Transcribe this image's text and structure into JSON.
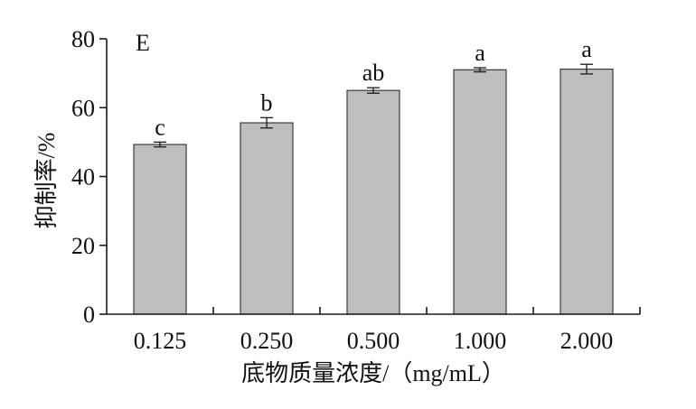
{
  "chart_data": {
    "type": "bar",
    "panel_label": "E",
    "categories": [
      "0.125",
      "0.250",
      "0.500",
      "1.000",
      "2.000"
    ],
    "values": [
      49.3,
      55.6,
      65.0,
      71.0,
      71.2
    ],
    "errors": [
      0.7,
      1.5,
      0.8,
      0.6,
      1.4
    ],
    "significance": [
      "c",
      "b",
      "ab",
      "a",
      "a"
    ],
    "xlabel": "底物质量浓度/（mg/mL）",
    "ylabel": "抑制率/%",
    "ylim": [
      0,
      80
    ],
    "yticks": [
      0,
      20,
      40,
      60,
      80
    ],
    "grid": false,
    "legend": "none",
    "colors": {
      "bar_fill": "#bebebe",
      "bar_stroke": "#3a3a3a",
      "axis": "#1a1a1a"
    }
  }
}
